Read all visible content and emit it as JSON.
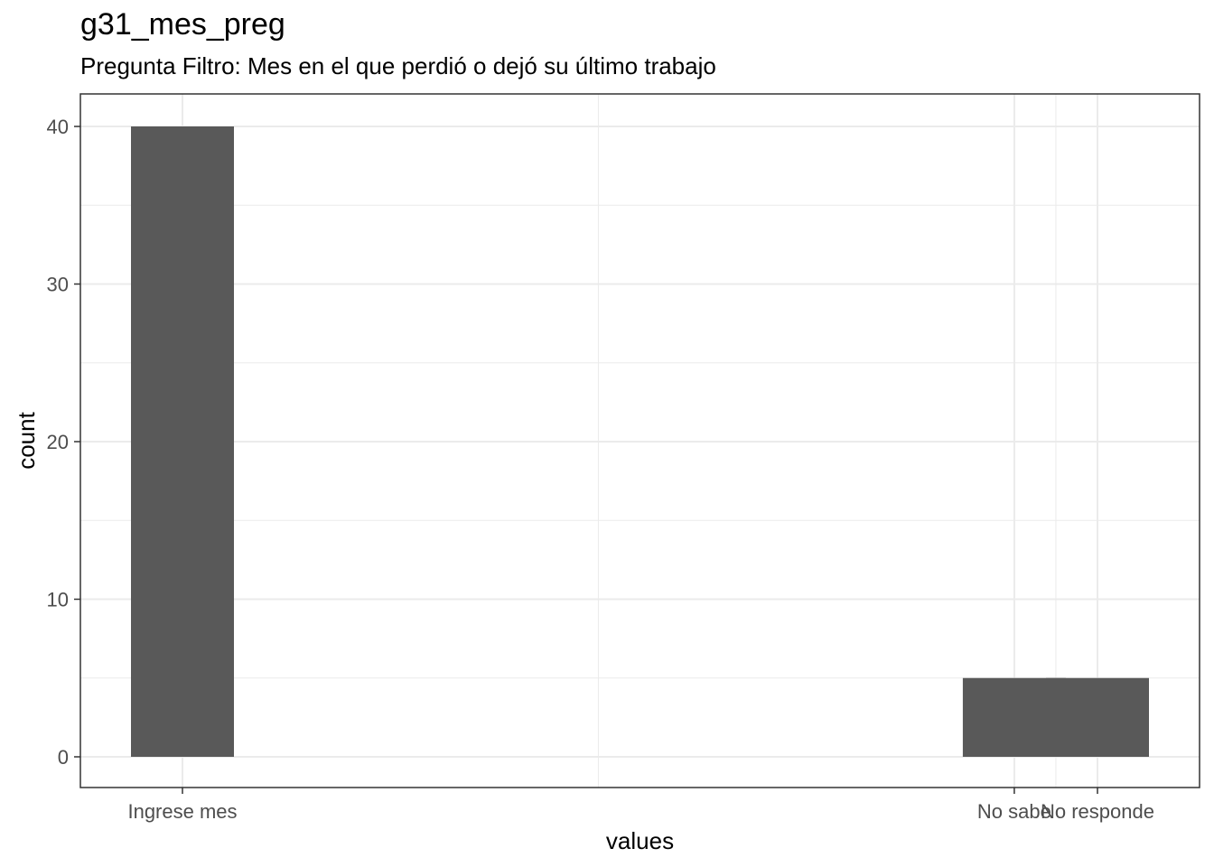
{
  "chart_data": {
    "type": "bar",
    "title": "g31_mes_preg",
    "subtitle": "Pregunta Filtro: Mes en el que perdió o dejó su último trabajo",
    "xlabel": "values",
    "ylabel": "count",
    "categories": [
      "Ingrese mes",
      "No sabe",
      "No responde"
    ],
    "values": [
      40,
      5,
      5
    ],
    "ylim": [
      0,
      40
    ],
    "yticks": [
      0,
      10,
      20,
      30,
      40
    ],
    "grid": true,
    "bar_color": "#595959",
    "grid_color": "#ebebeb",
    "panel_border_color": "#333333"
  }
}
